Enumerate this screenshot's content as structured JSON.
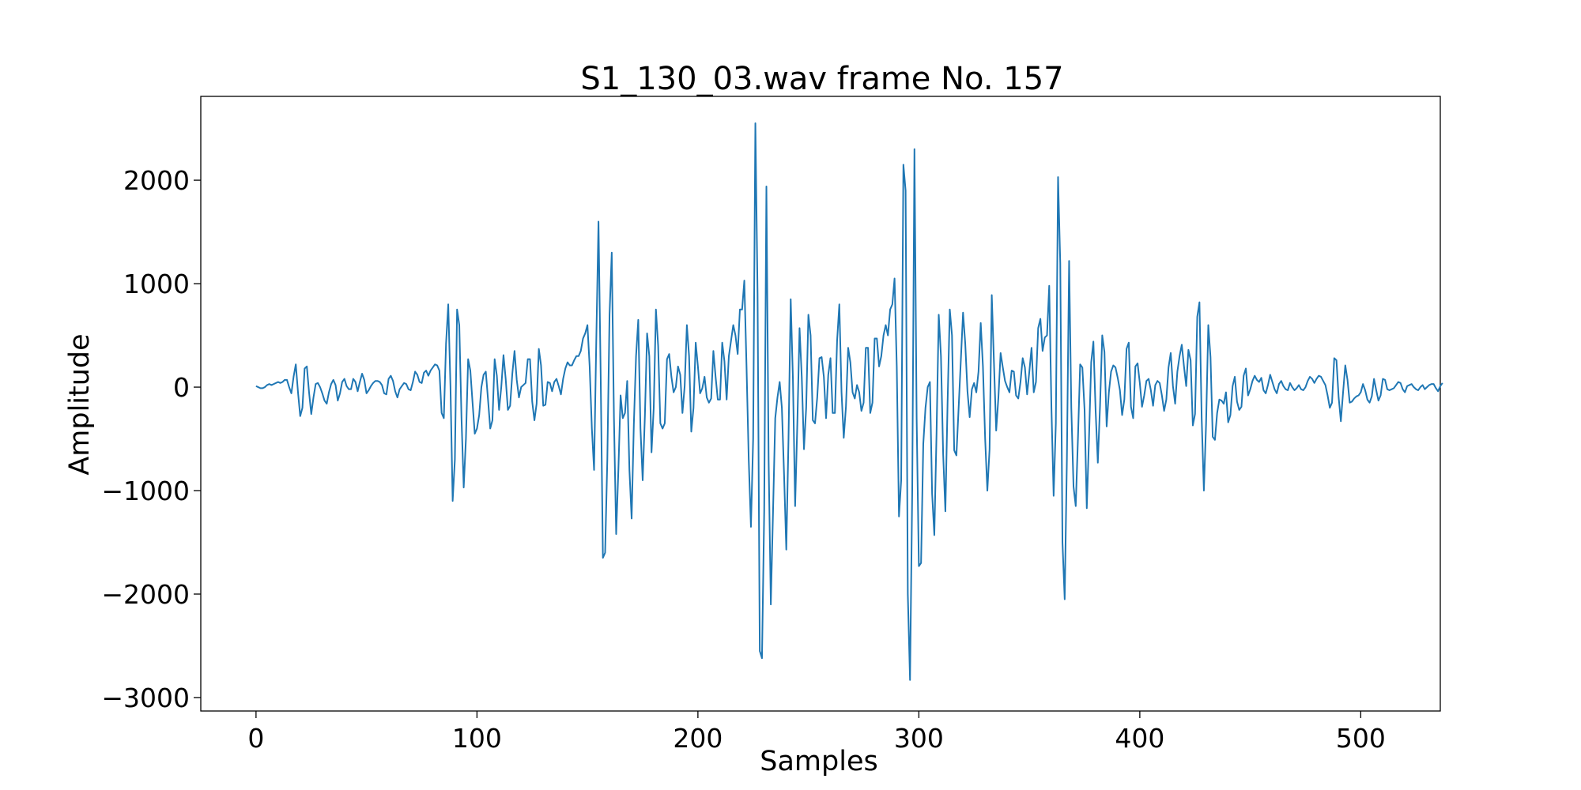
{
  "chart_data": {
    "type": "line",
    "title": "S1_130_03.wav frame No. 157",
    "xlabel": "Samples",
    "ylabel": "Amplitude",
    "xlim": [
      -25,
      536
    ],
    "ylim": [
      -3130,
      2810
    ],
    "xticks": [
      0,
      100,
      200,
      300,
      400,
      500
    ],
    "yticks": [
      -3000,
      -2000,
      -1000,
      0,
      1000,
      2000
    ],
    "xtick_labels": [
      "0",
      "100",
      "200",
      "300",
      "400",
      "500"
    ],
    "ytick_labels": [
      "−3000",
      "−2000",
      "−1000",
      "0",
      "1000",
      "2000"
    ],
    "grid": false,
    "line_color": "#1f77b4",
    "series": [
      {
        "x_start": 0,
        "x_step": 1,
        "values": [
          10,
          0,
          -10,
          -10,
          0,
          20,
          30,
          20,
          30,
          40,
          50,
          40,
          50,
          70,
          70,
          0,
          -60,
          100,
          220,
          -50,
          -280,
          -200,
          180,
          200,
          -50,
          -260,
          -100,
          30,
          40,
          0,
          -60,
          -130,
          -160,
          -50,
          30,
          70,
          20,
          -130,
          -60,
          50,
          80,
          10,
          -20,
          -20,
          80,
          50,
          -40,
          50,
          130,
          70,
          -60,
          -30,
          10,
          40,
          60,
          60,
          50,
          20,
          -60,
          -70,
          80,
          110,
          60,
          -40,
          -100,
          -20,
          10,
          40,
          30,
          -20,
          -30,
          50,
          150,
          120,
          50,
          40,
          140,
          160,
          110,
          160,
          190,
          220,
          210,
          160,
          -250,
          -300,
          420,
          800,
          10,
          -1100,
          -700,
          750,
          600,
          -300,
          -970,
          -500,
          270,
          160,
          -150,
          -450,
          -400,
          -270,
          0,
          120,
          150,
          -120,
          -400,
          -320,
          270,
          110,
          -220,
          0,
          310,
          80,
          -220,
          -180,
          130,
          350,
          70,
          -100,
          0,
          20,
          40,
          270,
          270,
          -140,
          -320,
          -160,
          370,
          210,
          -180,
          -170,
          50,
          40,
          -40,
          50,
          80,
          10,
          -70,
          80,
          180,
          240,
          210,
          210,
          260,
          300,
          300,
          350,
          470,
          520,
          600,
          200,
          -400,
          -800,
          450,
          1600,
          100,
          -1650,
          -1600,
          -700,
          700,
          1300,
          -300,
          -1420,
          -800,
          -80,
          -300,
          -250,
          60,
          -800,
          -1270,
          -360,
          300,
          650,
          -400,
          -900,
          -280,
          520,
          300,
          -630,
          -200,
          750,
          400,
          -350,
          -400,
          -350,
          270,
          320,
          100,
          -50,
          0,
          200,
          120,
          -250,
          10,
          600,
          300,
          -430,
          -200,
          430,
          200,
          -60,
          -10,
          100,
          -100,
          -150,
          -110,
          350,
          100,
          -120,
          -120,
          430,
          250,
          -120,
          300,
          450,
          600,
          500,
          320,
          750,
          750,
          1030,
          200,
          -700,
          -1350,
          -500,
          2550,
          900,
          -2550,
          -2620,
          -1200,
          1940,
          -700,
          -2100,
          -1200,
          -300,
          -100,
          50,
          -200,
          -850,
          -1570,
          -500,
          850,
          80,
          -1150,
          -350,
          570,
          100,
          -600,
          -200,
          700,
          500,
          -320,
          -350,
          -100,
          280,
          290,
          100,
          -300,
          120,
          280,
          -250,
          -250,
          450,
          800,
          -50,
          -490,
          -190,
          380,
          240,
          -50,
          -110,
          20,
          -50,
          -230,
          -150,
          380,
          380,
          -250,
          -150,
          470,
          470,
          200,
          300,
          500,
          600,
          500,
          750,
          800,
          1050,
          200,
          -1250,
          -900,
          2150,
          1900,
          -2000,
          -2830,
          -1000,
          2300,
          -300,
          -1730,
          -1700,
          -550,
          -200,
          0,
          50,
          -1030,
          -1430,
          -450,
          700,
          300,
          -650,
          -1200,
          -150,
          750,
          500,
          -610,
          -660,
          -200,
          260,
          720,
          420,
          -40,
          -290,
          -20,
          40,
          -50,
          150,
          620,
          200,
          -500,
          -1000,
          -600,
          890,
          230,
          -420,
          -100,
          330,
          190,
          60,
          0,
          -50,
          160,
          150,
          -80,
          -110,
          50,
          280,
          190,
          -70,
          150,
          380,
          -50,
          50,
          570,
          660,
          350,
          480,
          500,
          980,
          -200,
          -1050,
          -350,
          2030,
          1200,
          -1500,
          -2050,
          -700,
          1220,
          -200,
          -960,
          -1150,
          -500,
          220,
          190,
          -220,
          -1170,
          -500,
          240,
          440,
          -230,
          -730,
          -180,
          500,
          340,
          -380,
          -50,
          150,
          210,
          190,
          90,
          -30,
          -270,
          -120,
          370,
          430,
          -190,
          -300,
          200,
          230,
          40,
          -190,
          -80,
          60,
          80,
          -30,
          -180,
          20,
          60,
          40,
          -80,
          -230,
          -120,
          190,
          330,
          10,
          -160,
          150,
          300,
          410,
          200,
          10,
          360,
          260,
          -370,
          -260,
          680,
          820,
          -300,
          -1000,
          -350,
          600,
          290,
          -480,
          -510,
          -250,
          -120,
          -130,
          -160,
          -50,
          -340,
          -270,
          10,
          100,
          -140,
          -220,
          -190,
          110,
          180,
          -80,
          -20,
          60,
          110,
          70,
          50,
          90,
          -30,
          -60,
          20,
          120,
          50,
          -20,
          -60,
          30,
          60,
          10,
          -20,
          -30,
          40,
          0,
          -30,
          -10,
          20,
          -20,
          -30,
          0,
          60,
          100,
          80,
          40,
          80,
          110,
          100,
          60,
          20,
          -80,
          -200,
          -150,
          280,
          260,
          -100,
          -330,
          -50,
          210,
          70,
          -150,
          -140,
          -110,
          -90,
          -80,
          -50,
          30,
          -30,
          -120,
          -150,
          -90,
          80,
          -30,
          -130,
          -80,
          80,
          70,
          -20,
          -30,
          -20,
          -10,
          20,
          50,
          40,
          -20,
          -50,
          10,
          20,
          30,
          0,
          -20,
          -30,
          0,
          20,
          -20,
          0,
          20,
          30,
          30,
          -10,
          -40,
          10,
          40
        ]
      }
    ]
  }
}
